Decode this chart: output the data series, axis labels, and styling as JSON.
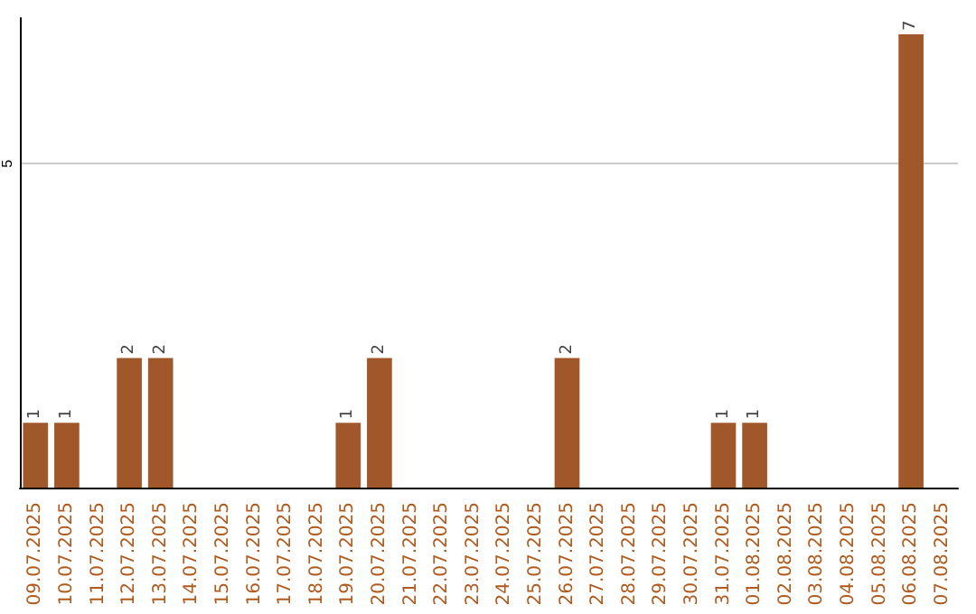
{
  "chart_data": {
    "type": "bar",
    "categories": [
      "09.07.2025",
      "10.07.2025",
      "11.07.2025",
      "12.07.2025",
      "13.07.2025",
      "14.07.2025",
      "15.07.2025",
      "16.07.2025",
      "17.07.2025",
      "18.07.2025",
      "19.07.2025",
      "20.07.2025",
      "21.07.2025",
      "22.07.2025",
      "23.07.2025",
      "24.07.2025",
      "25.07.2025",
      "26.07.2025",
      "27.07.2025",
      "28.07.2025",
      "29.07.2025",
      "30.07.2025",
      "31.07.2025",
      "01.08.2025",
      "02.08.2025",
      "03.08.2025",
      "04.08.2025",
      "05.08.2025",
      "06.08.2025",
      "07.08.2025"
    ],
    "values": [
      1,
      1,
      0,
      2,
      2,
      0,
      0,
      0,
      0,
      0,
      1,
      2,
      0,
      0,
      0,
      0,
      0,
      2,
      0,
      0,
      0,
      0,
      1,
      1,
      0,
      0,
      0,
      0,
      7,
      0
    ],
    "value_labels": [
      "1",
      "1",
      null,
      "2",
      "2",
      null,
      null,
      null,
      null,
      null,
      "1",
      "2",
      null,
      null,
      null,
      null,
      null,
      "2",
      null,
      null,
      null,
      null,
      "1",
      "1",
      null,
      null,
      null,
      null,
      "7",
      null
    ],
    "color": "#a0582a",
    "ylim": [
      0,
      7.25
    ],
    "yticks": [
      5
    ],
    "grid": "y"
  }
}
